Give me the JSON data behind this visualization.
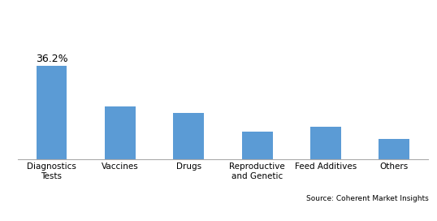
{
  "categories": [
    "Diagnostics\nTests",
    "Vaccines",
    "Drugs",
    "Reproductive\nand Genetic",
    "Feed Additives",
    "Others"
  ],
  "values": [
    36.2,
    20.5,
    18.0,
    10.8,
    12.5,
    7.8
  ],
  "bar_color": "#5B9BD5",
  "annotation_text": "36.2%",
  "annotation_bar_index": 0,
  "source_text": "Source: Coherent Market Insights",
  "ylim": [
    0,
    55
  ],
  "background_color": "#ffffff",
  "bar_width": 0.45,
  "tick_fontsize": 7.5,
  "annotation_fontsize": 9,
  "source_fontsize": 6.5
}
